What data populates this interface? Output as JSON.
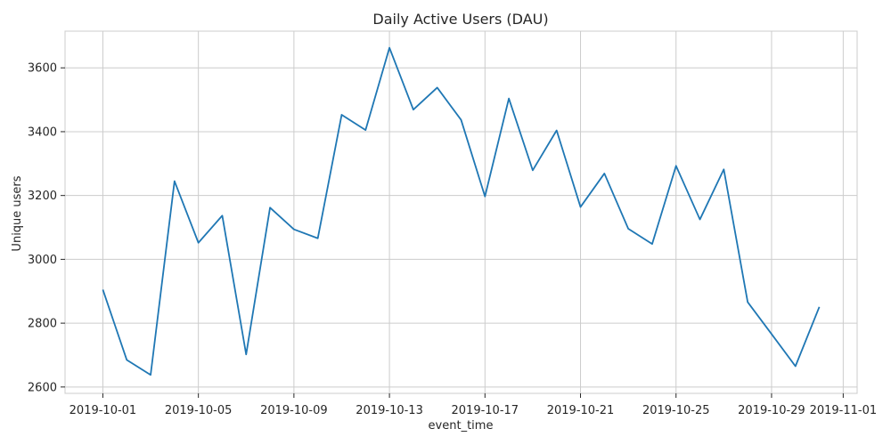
{
  "chart_data": {
    "type": "line",
    "title": "Daily Active Users (DAU)",
    "xlabel": "event_time",
    "ylabel": "Unique users",
    "grid": true,
    "legend": "none",
    "x_tick_labels": [
      "2019-10-01",
      "2019-10-05",
      "2019-10-09",
      "2019-10-13",
      "2019-10-17",
      "2019-10-21",
      "2019-10-25",
      "2019-10-29",
      "2019-11-01"
    ],
    "y_ticks": [
      2600,
      2800,
      3000,
      3200,
      3400,
      3600
    ],
    "ylim": [
      2580,
      3715
    ],
    "xlim": [
      "2019-09-29T10:00",
      "2019-11-01T14:00"
    ],
    "series": [
      {
        "color": "#1f77b4",
        "x": [
          "2019-10-01",
          "2019-10-02",
          "2019-10-03",
          "2019-10-04",
          "2019-10-05",
          "2019-10-06",
          "2019-10-07",
          "2019-10-08",
          "2019-10-09",
          "2019-10-10",
          "2019-10-11",
          "2019-10-12",
          "2019-10-13",
          "2019-10-14",
          "2019-10-15",
          "2019-10-16",
          "2019-10-17",
          "2019-10-18",
          "2019-10-19",
          "2019-10-20",
          "2019-10-21",
          "2019-10-22",
          "2019-10-23",
          "2019-10-24",
          "2019-10-25",
          "2019-10-26",
          "2019-10-27",
          "2019-10-28",
          "2019-10-29",
          "2019-10-30",
          "2019-10-31"
        ],
        "values": [
          2905,
          2685,
          2638,
          3245,
          3052,
          3137,
          2702,
          3162,
          3094,
          3066,
          3453,
          3405,
          3663,
          3469,
          3538,
          3437,
          3197,
          3504,
          3279,
          3404,
          3164,
          3269,
          3096,
          3048,
          3293,
          3125,
          3282,
          2866,
          2766,
          2665,
          2851
        ]
      }
    ]
  }
}
